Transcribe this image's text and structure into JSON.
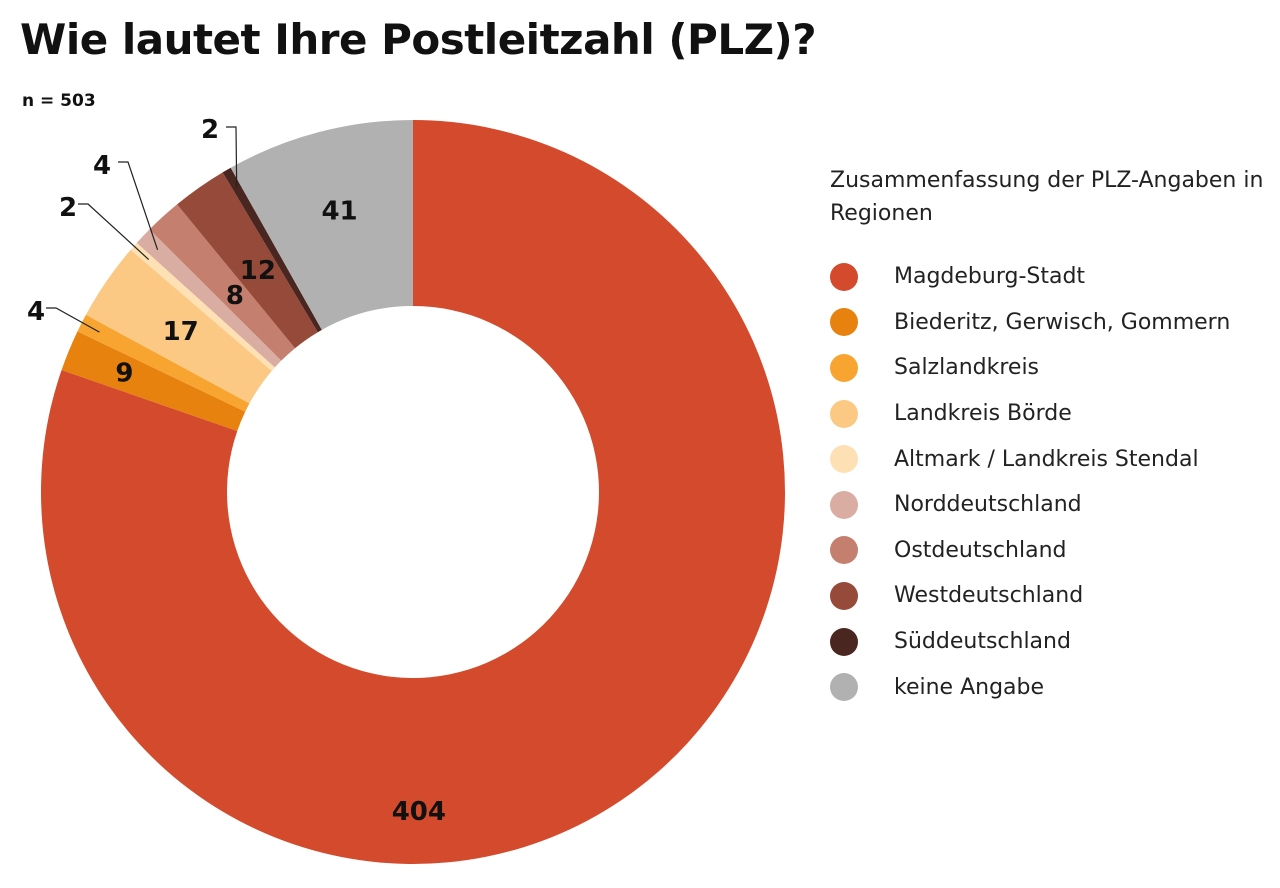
{
  "title": "Wie lautet Ihre Postleitzahl (PLZ)?",
  "subtitle": "n = 503",
  "chart_data": {
    "type": "pie",
    "variant": "donut",
    "title": "Wie lautet Ihre Postleitzahl (PLZ)?",
    "subtitle": "n = 503",
    "legend_title": "Zusammenfassung der PLZ-Angaben in Regionen",
    "legend_position": "right",
    "start_angle": "12 o'clock",
    "direction": "clockwise",
    "categories": [
      "Magdeburg-Stadt",
      "Biederitz, Gerwisch, Gommern",
      "Salzlandkreis",
      "Landkreis Börde",
      "Altmark / Landkreis Stendal",
      "Norddeutschland",
      "Ostdeutschland",
      "Westdeutschland",
      "Süddeutschland",
      "keine Angabe"
    ],
    "values": [
      404,
      9,
      4,
      17,
      2,
      4,
      8,
      12,
      2,
      41
    ],
    "colors": [
      "#d44a2c",
      "#e8820e",
      "#f7a530",
      "#fcc984",
      "#fde0b3",
      "#d9ada1",
      "#c57f6e",
      "#964a39",
      "#4a2620",
      "#b1b1b1"
    ],
    "data_labels": [
      "404",
      "9",
      "4",
      "17",
      "2",
      "4",
      "8",
      "12",
      "2",
      "41"
    ]
  }
}
